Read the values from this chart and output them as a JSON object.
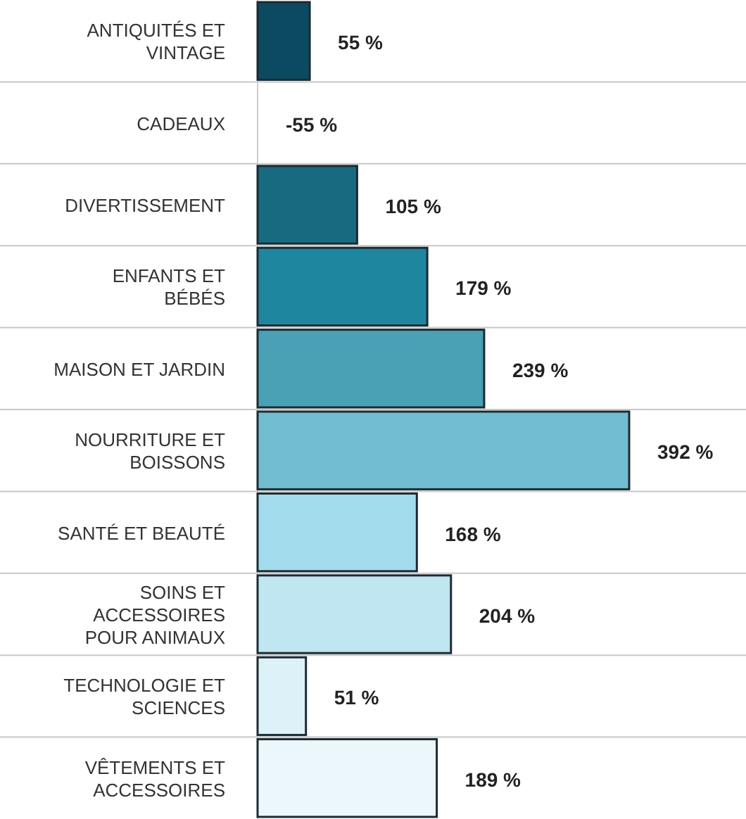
{
  "chart_data": {
    "type": "bar",
    "orientation": "horizontal",
    "categories": [
      "ANTIQUITÉS ET VINTAGE",
      "CADEAUX",
      "DIVERTISSEMENT",
      "ENFANTS ET BÉBÉS",
      "MAISON ET JARDIN",
      "NOURRITURE ET BOISSONS",
      "SANTÉ ET BEAUTÉ",
      "SOINS ET ACCESSOIRES POUR ANIMAUX",
      "TECHNOLOGIE ET SCIENCES",
      "VÊTEMENTS ET ACCESSOIRES"
    ],
    "values": [
      55,
      null,
      105,
      179,
      239,
      392,
      168,
      204,
      51,
      189
    ],
    "value_labels": [
      "55 %",
      "-55 %",
      "105 %",
      "179 %",
      "239 %",
      "392 %",
      "168 %",
      "204 %",
      "51 %",
      "189 %"
    ],
    "colors": [
      "#0b4a60",
      null,
      "#186a80",
      "#1f86a0",
      "#4aa0b5",
      "#71bcd0",
      "#a2dcec",
      "#bfe6f1",
      "#dcf2f8",
      "#ebf7fb"
    ]
  }
}
